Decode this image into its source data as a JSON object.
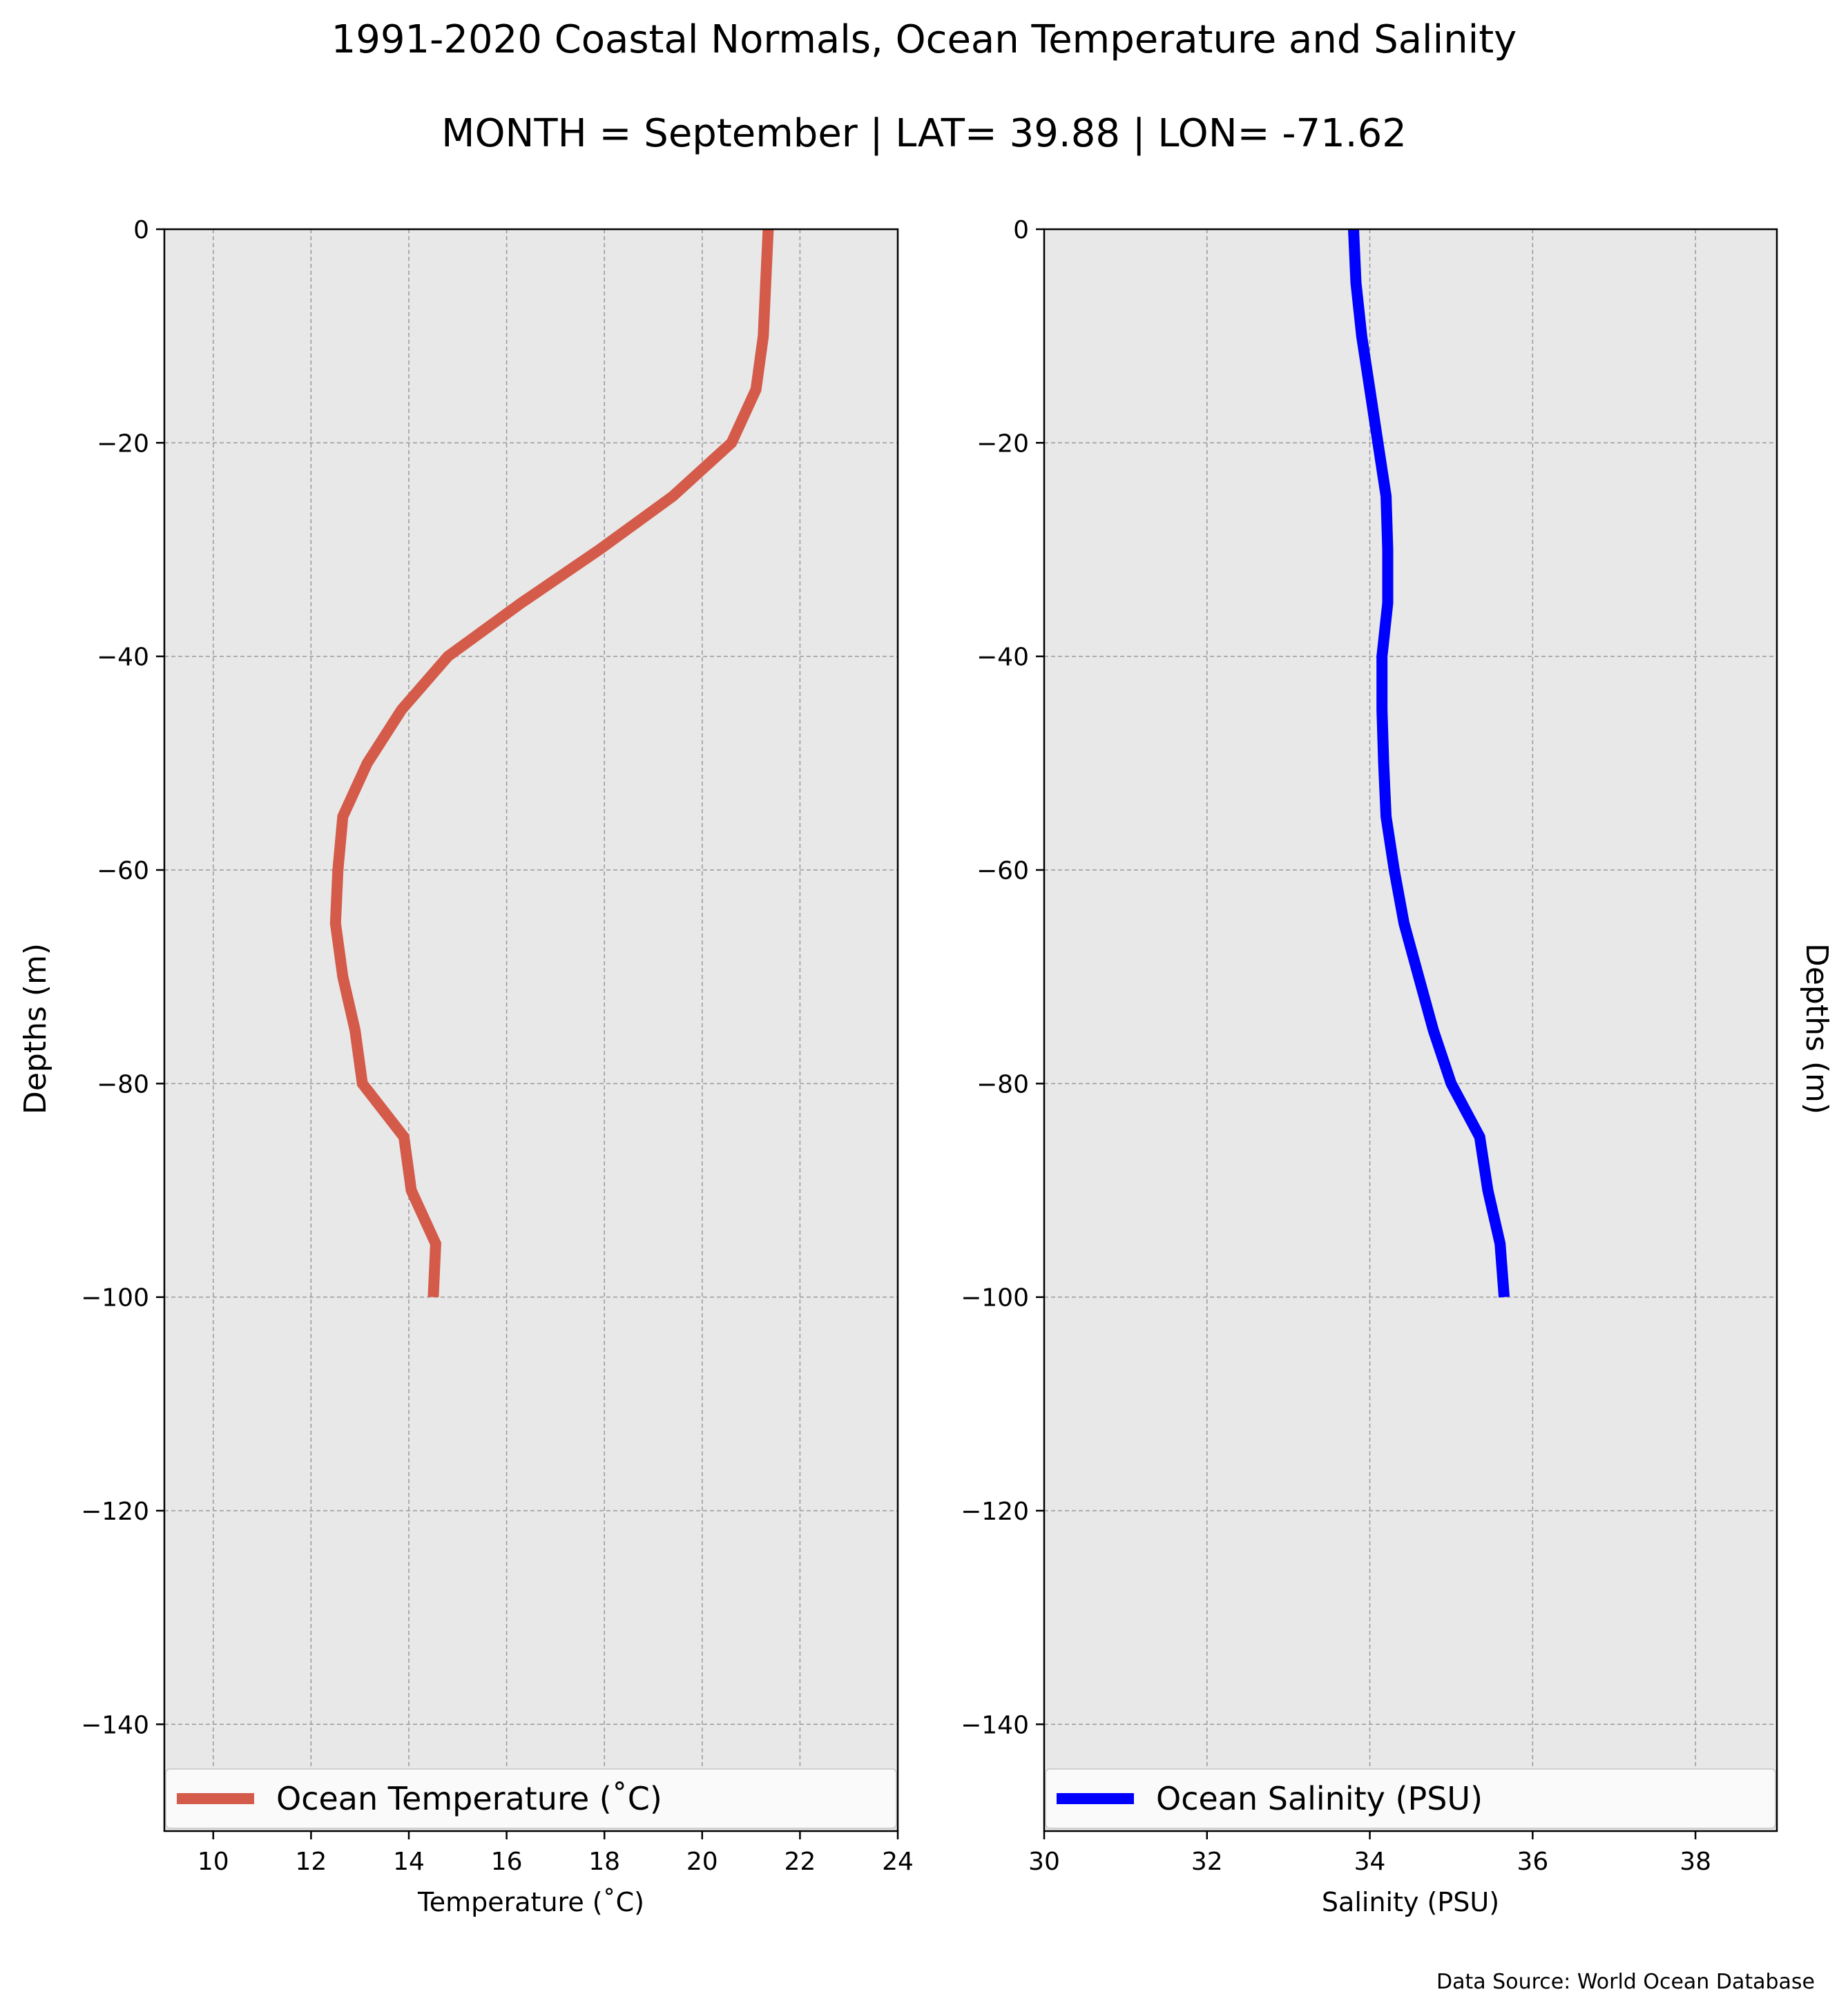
{
  "figure": {
    "title_line1": "1991-2020 Coastal Normals, Ocean Temperature and Salinity",
    "title_line2": "MONTH = September | LAT= 39.88 | LON= -71.62",
    "source": "Data Source: World Ocean Database"
  },
  "colors": {
    "temperature": "#d45b4a",
    "salinity": "#0000ff",
    "plot_bg": "#e8e8e8",
    "grid": "#999999"
  },
  "chart_data": [
    {
      "type": "line",
      "xlabel": "Temperature ($^\\circ$C)",
      "xlabel_display": "Temperature (˚C)",
      "ylabel": "Depths (m)",
      "xlim": [
        9,
        24
      ],
      "ylim": [
        -150,
        0
      ],
      "xticks": [
        "10",
        "12",
        "14",
        "16",
        "18",
        "20",
        "22",
        "24"
      ],
      "xtick_values": [
        10,
        12,
        14,
        16,
        18,
        20,
        22,
        24
      ],
      "yticks": [
        "0",
        "−20",
        "−40",
        "−60",
        "−80",
        "−100",
        "−120",
        "−140"
      ],
      "ytick_values": [
        0,
        -20,
        -40,
        -60,
        -80,
        -100,
        -120,
        -140
      ],
      "grid": true,
      "legend_position": "bottom",
      "series": [
        {
          "name": "Ocean Temperature (˚C)",
          "x": [
            21.35,
            21.3,
            21.25,
            21.1,
            20.6,
            19.4,
            17.9,
            16.3,
            14.8,
            13.85,
            13.15,
            12.65,
            12.55,
            12.5,
            12.65,
            12.9,
            13.05,
            13.9,
            14.05,
            14.55,
            14.5
          ],
          "y": [
            0,
            -5,
            -10,
            -15,
            -20,
            -25,
            -30,
            -35,
            -40,
            -45,
            -50,
            -55,
            -60,
            -65,
            -70,
            -75,
            -80,
            -85,
            -90,
            -95,
            -100
          ]
        }
      ]
    },
    {
      "type": "line",
      "xlabel": "Salinity (PSU)",
      "ylabel": "Depths (m)",
      "xlim": [
        30,
        39
      ],
      "ylim": [
        -150,
        0
      ],
      "xticks": [
        "30",
        "32",
        "34",
        "36",
        "38"
      ],
      "xtick_values": [
        30,
        32,
        34,
        36,
        38
      ],
      "yticks": [
        "0",
        "−20",
        "−40",
        "−60",
        "−80",
        "−100",
        "−120",
        "−140"
      ],
      "ytick_values": [
        0,
        -20,
        -40,
        -60,
        -80,
        -100,
        -120,
        -140
      ],
      "grid": true,
      "legend_position": "bottom",
      "series": [
        {
          "name": "Ocean Salinity (PSU)",
          "x": [
            33.8,
            33.83,
            33.9,
            34.0,
            34.1,
            34.2,
            34.22,
            34.22,
            34.15,
            34.15,
            34.17,
            34.2,
            34.3,
            34.42,
            34.6,
            34.78,
            35.0,
            35.35,
            35.45,
            35.6,
            35.65
          ],
          "y": [
            0,
            -5,
            -10,
            -15,
            -20,
            -25,
            -30,
            -35,
            -40,
            -45,
            -50,
            -55,
            -60,
            -65,
            -70,
            -75,
            -80,
            -85,
            -90,
            -95,
            -100
          ]
        }
      ]
    }
  ]
}
